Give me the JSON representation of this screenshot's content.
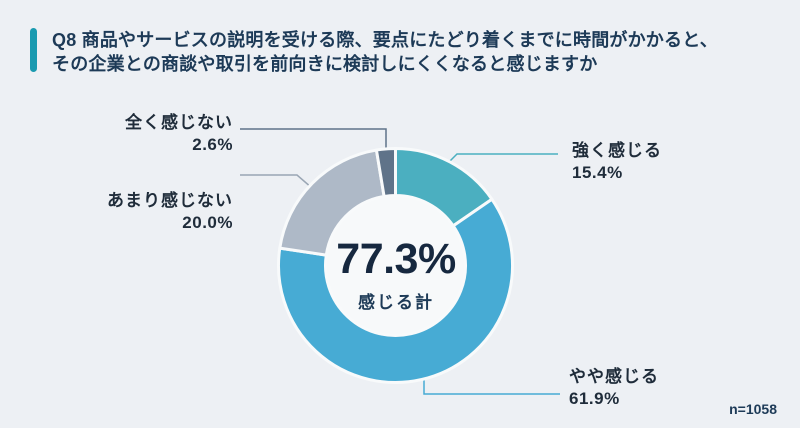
{
  "title": {
    "line1": "Q8 商品やサービスの説明を受ける際、要点にたどり着くまでに時間がかかると、",
    "line2": "その企業との商談や取引を前向きに検討しにくくなると感じますか"
  },
  "chart_data": {
    "type": "pie",
    "subtype": "donut",
    "start_angle_deg": 0,
    "direction": "clockwise",
    "legend_position": "callout-labels",
    "segments": [
      {
        "label": "強く感じる",
        "value": 15.4,
        "display": "15.4%",
        "color": "#4bafc0",
        "leader_color": "#4bafc0"
      },
      {
        "label": "やや感じる",
        "value": 61.9,
        "display": "61.9%",
        "color": "#47abd4",
        "leader_color": "#47abd4"
      },
      {
        "label": "あまり感じない",
        "value": 20.0,
        "display": "20.0%",
        "color": "#aeb9c7",
        "leader_color": "#9aa6b4"
      },
      {
        "label": "全く感じない",
        "value": 2.6,
        "display": "2.6%",
        "color": "#5f7389",
        "leader_color": "#5f7389"
      }
    ],
    "center": {
      "value": "77.3%",
      "caption": "感じる計"
    }
  },
  "footnote": "n=1058",
  "colors": {
    "background": "#edf0f4",
    "accent_bar": "#1a9ab0",
    "title_text": "#1d3a57",
    "donut_hole": "#f7f9fa",
    "segment_gap": "#f8fafb",
    "center_value_text": "#16283f",
    "callout_text": "#1f2c3a"
  }
}
